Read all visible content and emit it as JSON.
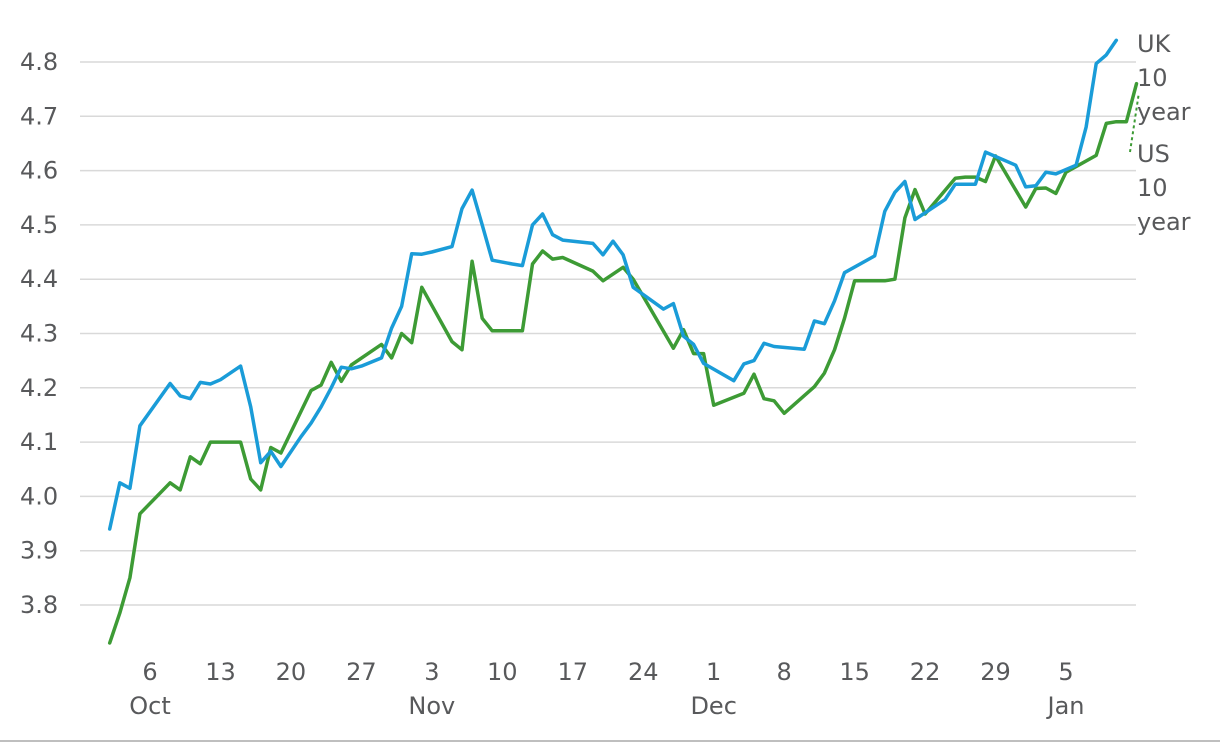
{
  "chart_data": {
    "type": "line",
    "title": "",
    "xlabel": "",
    "ylabel": "",
    "ylim": [
      3.72,
      4.87
    ],
    "yticks": [
      "3.8",
      "3.9",
      "4.0",
      "4.1",
      "4.2",
      "4.3",
      "4.4",
      "4.5",
      "4.6",
      "4.7",
      "4.8"
    ],
    "xlim": [
      "2023-10-02",
      "2024-01-08"
    ],
    "xticks": [
      {
        "date": "2023-10-06",
        "label": "6",
        "month": "Oct"
      },
      {
        "date": "2023-10-13",
        "label": "13",
        "month": ""
      },
      {
        "date": "2023-10-20",
        "label": "20",
        "month": ""
      },
      {
        "date": "2023-10-27",
        "label": "27",
        "month": ""
      },
      {
        "date": "2023-11-03",
        "label": "3",
        "month": "Nov"
      },
      {
        "date": "2023-11-10",
        "label": "10",
        "month": ""
      },
      {
        "date": "2023-11-17",
        "label": "17",
        "month": ""
      },
      {
        "date": "2023-11-24",
        "label": "24",
        "month": ""
      },
      {
        "date": "2023-12-01",
        "label": "1",
        "month": "Dec"
      },
      {
        "date": "2023-12-08",
        "label": "8",
        "month": ""
      },
      {
        "date": "2023-12-15",
        "label": "15",
        "month": ""
      },
      {
        "date": "2023-12-22",
        "label": "22",
        "month": ""
      },
      {
        "date": "2023-12-29",
        "label": "29",
        "month": ""
      },
      {
        "date": "2024-01-05",
        "label": "5",
        "month": "Jan"
      }
    ],
    "grid": true,
    "legend": "right",
    "colors": {
      "uk": "#1a9cd8",
      "us": "#3d9b35",
      "grid": "#d9d9d9",
      "axis": "#58595b",
      "text": "#58595b"
    },
    "series": [
      {
        "name": "UK 10 year",
        "color": "#1a9cd8",
        "label_lines": [
          "UK",
          "10",
          "year"
        ],
        "points": [
          [
            "2023-10-02",
            3.94
          ],
          [
            "2023-10-03",
            4.025
          ],
          [
            "2023-10-04",
            4.015
          ],
          [
            "2023-10-05",
            4.13
          ],
          [
            "2023-10-08",
            4.208
          ],
          [
            "2023-10-09",
            4.185
          ],
          [
            "2023-10-10",
            4.18
          ],
          [
            "2023-10-11",
            4.21
          ],
          [
            "2023-10-12",
            4.207
          ],
          [
            "2023-10-13",
            4.215
          ],
          [
            "2023-10-15",
            4.24
          ],
          [
            "2023-10-16",
            4.165
          ],
          [
            "2023-10-17",
            4.062
          ],
          [
            "2023-10-18",
            4.083
          ],
          [
            "2023-10-19",
            4.055
          ],
          [
            "2023-10-21",
            4.11
          ],
          [
            "2023-10-22",
            4.135
          ],
          [
            "2023-10-23",
            4.165
          ],
          [
            "2023-10-24",
            4.2
          ],
          [
            "2023-10-25",
            4.238
          ],
          [
            "2023-10-26",
            4.235
          ],
          [
            "2023-10-27",
            4.24
          ],
          [
            "2023-10-29",
            4.255
          ],
          [
            "2023-10-30",
            4.31
          ],
          [
            "2023-10-31",
            4.35
          ],
          [
            "2023-11-01",
            4.447
          ],
          [
            "2023-11-02",
            4.446
          ],
          [
            "2023-11-03",
            4.45
          ],
          [
            "2023-11-05",
            4.46
          ],
          [
            "2023-11-06",
            4.53
          ],
          [
            "2023-11-07",
            4.564
          ],
          [
            "2023-11-08",
            4.5
          ],
          [
            "2023-11-09",
            4.435
          ],
          [
            "2023-11-11",
            4.428
          ],
          [
            "2023-11-12",
            4.425
          ],
          [
            "2023-11-13",
            4.5
          ],
          [
            "2023-11-14",
            4.52
          ],
          [
            "2023-11-15",
            4.482
          ],
          [
            "2023-11-16",
            4.472
          ],
          [
            "2023-11-19",
            4.466
          ],
          [
            "2023-11-20",
            4.445
          ],
          [
            "2023-11-21",
            4.47
          ],
          [
            "2023-11-22",
            4.445
          ],
          [
            "2023-11-23",
            4.385
          ],
          [
            "2023-11-26",
            4.345
          ],
          [
            "2023-11-27",
            4.355
          ],
          [
            "2023-11-28",
            4.295
          ],
          [
            "2023-11-29",
            4.28
          ],
          [
            "2023-11-30",
            4.245
          ],
          [
            "2023-12-03",
            4.213
          ],
          [
            "2023-12-04",
            4.244
          ],
          [
            "2023-12-05",
            4.25
          ],
          [
            "2023-12-06",
            4.282
          ],
          [
            "2023-12-07",
            4.276
          ],
          [
            "2023-12-10",
            4.271
          ],
          [
            "2023-12-11",
            4.323
          ],
          [
            "2023-12-12",
            4.318
          ],
          [
            "2023-12-13",
            4.36
          ],
          [
            "2023-12-14",
            4.412
          ],
          [
            "2023-12-17",
            4.443
          ],
          [
            "2023-12-18",
            4.525
          ],
          [
            "2023-12-19",
            4.56
          ],
          [
            "2023-12-20",
            4.58
          ],
          [
            "2023-12-21",
            4.51
          ],
          [
            "2023-12-24",
            4.547
          ],
          [
            "2023-12-25",
            4.575
          ],
          [
            "2023-12-27",
            4.575
          ],
          [
            "2023-12-28",
            4.634
          ],
          [
            "2023-12-31",
            4.61
          ],
          [
            "2024-01-01",
            4.57
          ],
          [
            "2024-01-02",
            4.572
          ],
          [
            "2024-01-03",
            4.597
          ],
          [
            "2024-01-04",
            4.594
          ],
          [
            "2024-01-06",
            4.61
          ],
          [
            "2024-01-07",
            4.68
          ],
          [
            "2024-01-08",
            4.797
          ],
          [
            "2024-01-09",
            4.813
          ],
          [
            "2024-01-10",
            4.84
          ]
        ]
      },
      {
        "name": "US 10 year",
        "color": "#3d9b35",
        "label_lines": [
          "US",
          "10",
          "year"
        ],
        "points": [
          [
            "2023-10-02",
            3.73
          ],
          [
            "2023-10-03",
            3.785
          ],
          [
            "2023-10-04",
            3.85
          ],
          [
            "2023-10-05",
            3.968
          ],
          [
            "2023-10-08",
            4.025
          ],
          [
            "2023-10-09",
            4.012
          ],
          [
            "2023-10-10",
            4.073
          ],
          [
            "2023-10-11",
            4.06
          ],
          [
            "2023-10-12",
            4.1
          ],
          [
            "2023-10-15",
            4.1
          ],
          [
            "2023-10-16",
            4.032
          ],
          [
            "2023-10-17",
            4.012
          ],
          [
            "2023-10-18",
            4.09
          ],
          [
            "2023-10-19",
            4.08
          ],
          [
            "2023-10-22",
            4.195
          ],
          [
            "2023-10-23",
            4.205
          ],
          [
            "2023-10-24",
            4.247
          ],
          [
            "2023-10-25",
            4.212
          ],
          [
            "2023-10-26",
            4.242
          ],
          [
            "2023-10-29",
            4.28
          ],
          [
            "2023-10-30",
            4.255
          ],
          [
            "2023-10-31",
            4.3
          ],
          [
            "2023-11-01",
            4.283
          ],
          [
            "2023-11-02",
            4.385
          ],
          [
            "2023-11-05",
            4.285
          ],
          [
            "2023-11-06",
            4.27
          ],
          [
            "2023-11-07",
            4.433
          ],
          [
            "2023-11-08",
            4.328
          ],
          [
            "2023-11-09",
            4.305
          ],
          [
            "2023-11-12",
            4.305
          ],
          [
            "2023-11-13",
            4.428
          ],
          [
            "2023-11-14",
            4.452
          ],
          [
            "2023-11-15",
            4.437
          ],
          [
            "2023-11-16",
            4.44
          ],
          [
            "2023-11-19",
            4.415
          ],
          [
            "2023-11-20",
            4.397
          ],
          [
            "2023-11-22",
            4.422
          ],
          [
            "2023-11-23",
            4.4
          ],
          [
            "2023-11-27",
            4.273
          ],
          [
            "2023-11-28",
            4.307
          ],
          [
            "2023-11-29",
            4.263
          ],
          [
            "2023-11-30",
            4.263
          ],
          [
            "2023-12-01",
            4.168
          ],
          [
            "2023-12-04",
            4.19
          ],
          [
            "2023-12-05",
            4.225
          ],
          [
            "2023-12-06",
            4.18
          ],
          [
            "2023-12-07",
            4.176
          ],
          [
            "2023-12-08",
            4.153
          ],
          [
            "2023-12-11",
            4.202
          ],
          [
            "2023-12-12",
            4.227
          ],
          [
            "2023-12-13",
            4.27
          ],
          [
            "2023-12-14",
            4.328
          ],
          [
            "2023-12-15",
            4.397
          ],
          [
            "2023-12-18",
            4.397
          ],
          [
            "2023-12-19",
            4.4
          ],
          [
            "2023-12-20",
            4.513
          ],
          [
            "2023-12-21",
            4.565
          ],
          [
            "2023-12-22",
            4.52
          ],
          [
            "2023-12-25",
            4.586
          ],
          [
            "2023-12-26",
            4.588
          ],
          [
            "2023-12-27",
            4.588
          ],
          [
            "2023-12-28",
            4.58
          ],
          [
            "2023-12-29",
            4.627
          ],
          [
            "2024-01-01",
            4.533
          ],
          [
            "2024-01-02",
            4.567
          ],
          [
            "2024-01-03",
            4.568
          ],
          [
            "2024-01-04",
            4.558
          ],
          [
            "2024-01-05",
            4.597
          ],
          [
            "2024-01-08",
            4.628
          ],
          [
            "2024-01-09",
            4.687
          ],
          [
            "2024-01-10",
            4.69
          ],
          [
            "2024-01-11",
            4.69
          ],
          [
            "2024-01-12",
            4.76
          ]
        ]
      }
    ]
  }
}
